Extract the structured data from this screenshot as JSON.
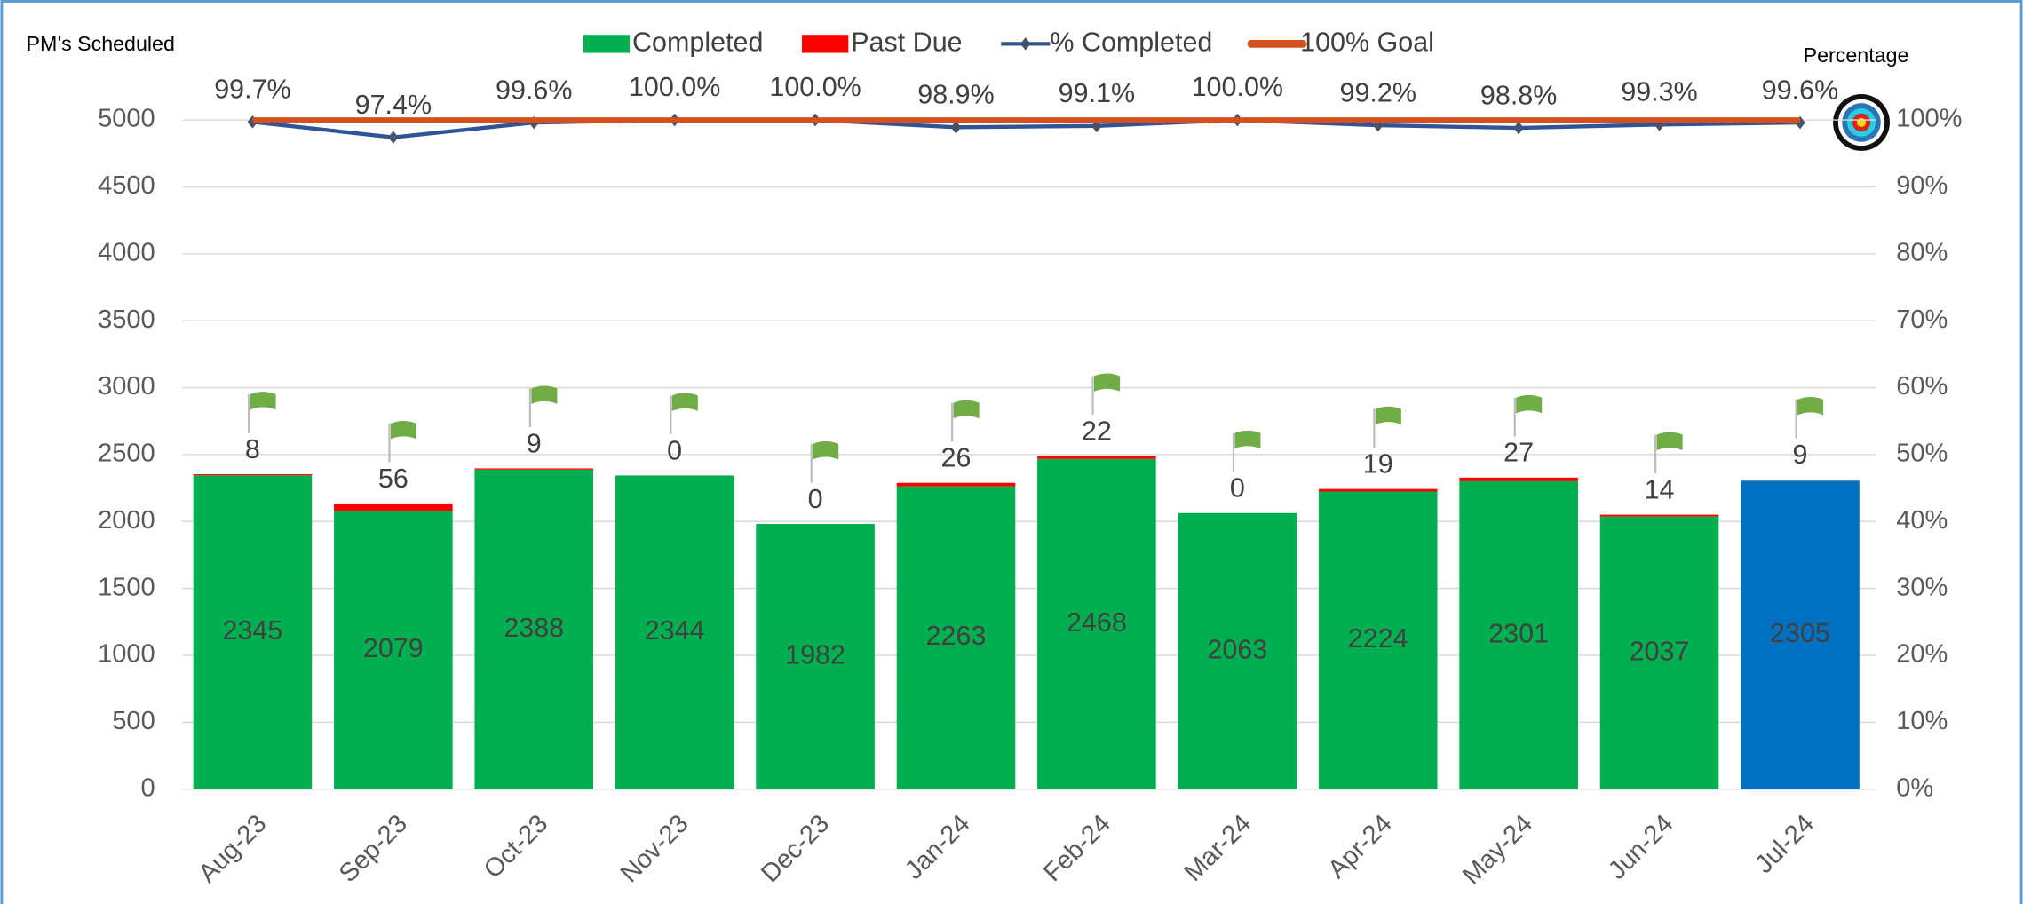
{
  "chart_data": {
    "type": "bar",
    "stacked": true,
    "y_axis_title": "PM’s Scheduled",
    "y2_axis_title": "Percentage",
    "categories": [
      "Aug-23",
      "Sep-23",
      "Oct-23",
      "Nov-23",
      "Dec-23",
      "Jan-24",
      "Feb-24",
      "Mar-24",
      "Apr-24",
      "May-24",
      "Jun-24",
      "Jul-24"
    ],
    "series": [
      {
        "name": "Completed",
        "type": "bar",
        "color": "#00b050",
        "colors": [
          "#00b050",
          "#00b050",
          "#00b050",
          "#00b050",
          "#00b050",
          "#00b050",
          "#00b050",
          "#00b050",
          "#00b050",
          "#00b050",
          "#00b050",
          "#0070c0"
        ],
        "values": [
          2345,
          2079,
          2388,
          2344,
          1982,
          2263,
          2468,
          2063,
          2224,
          2301,
          2037,
          2305
        ]
      },
      {
        "name": "Past Due",
        "type": "bar",
        "color": "#ff0000",
        "colors": [
          "#ff0000",
          "#ff0000",
          "#ff0000",
          "#ff0000",
          "#ff0000",
          "#ff0000",
          "#ff0000",
          "#ff0000",
          "#ff0000",
          "#ff0000",
          "#ff0000",
          "#c9a14a"
        ],
        "values": [
          8,
          56,
          9,
          0,
          0,
          26,
          22,
          0,
          19,
          27,
          14,
          9
        ]
      },
      {
        "name": "% Completed",
        "type": "line",
        "axis": "y2",
        "color": "#2f5597",
        "values": [
          99.7,
          97.4,
          99.6,
          100.0,
          100.0,
          98.9,
          99.1,
          100.0,
          99.2,
          98.8,
          99.3,
          99.6
        ],
        "value_labels": [
          "99.7%",
          "97.4%",
          "99.6%",
          "100.0%",
          "100.0%",
          "98.9%",
          "99.1%",
          "100.0%",
          "99.2%",
          "98.8%",
          "99.3%",
          "99.6%"
        ]
      },
      {
        "name": "100% Goal",
        "type": "line",
        "axis": "y2",
        "color": "#d4501c",
        "values": [
          100,
          100,
          100,
          100,
          100,
          100,
          100,
          100,
          100,
          100,
          100,
          100
        ]
      }
    ],
    "ylim": [
      0,
      5000
    ],
    "yticks": [
      0,
      500,
      1000,
      1500,
      2000,
      2500,
      3000,
      3500,
      4000,
      4500,
      5000
    ],
    "y2lim": [
      0,
      100
    ],
    "y2ticks": [
      {
        "value": 0,
        "label": "0%"
      },
      {
        "value": 10,
        "label": "10%"
      },
      {
        "value": 20,
        "label": "20%"
      },
      {
        "value": 30,
        "label": "30%"
      },
      {
        "value": 40,
        "label": "40%"
      },
      {
        "value": 50,
        "label": "50%"
      },
      {
        "value": 60,
        "label": "60%"
      },
      {
        "value": 70,
        "label": "70%"
      },
      {
        "value": 80,
        "label": "80%"
      },
      {
        "value": 90,
        "label": "90%"
      },
      {
        "value": 100,
        "label": "100%"
      }
    ],
    "grid": true,
    "legend": "top"
  }
}
